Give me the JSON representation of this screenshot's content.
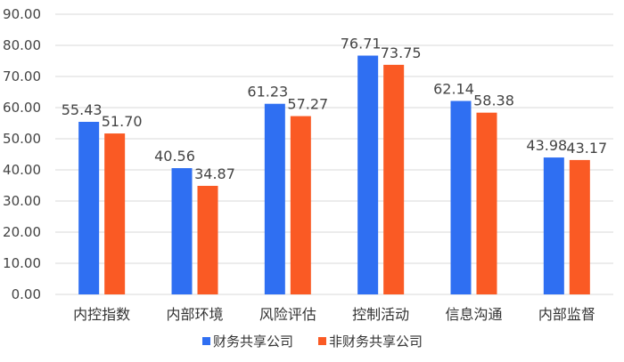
{
  "chart_data": {
    "type": "bar",
    "categories": [
      "内控指数",
      "内部环境",
      "风险评估",
      "控制活动",
      "信息沟通",
      "内部监督"
    ],
    "series": [
      {
        "name": "财务共享公司",
        "color": "#2f6ff2",
        "values": [
          55.43,
          40.56,
          61.23,
          76.71,
          62.14,
          43.98
        ]
      },
      {
        "name": "非财务共享公司",
        "color": "#fa5a24",
        "values": [
          51.7,
          34.87,
          57.27,
          73.75,
          58.38,
          43.17
        ]
      }
    ],
    "value_labels": [
      [
        "55.43",
        "40.56",
        "61.23",
        "76.71",
        "62.14",
        "43.98"
      ],
      [
        "51.70",
        "34.87",
        "57.27",
        "73.75",
        "58.38",
        "43.17"
      ]
    ],
    "yticks": [
      "0.00",
      "10.00",
      "20.00",
      "30.00",
      "40.00",
      "50.00",
      "60.00",
      "70.00",
      "80.00",
      "90.00"
    ],
    "ylim": [
      0,
      90
    ],
    "title": "",
    "xlabel": "",
    "ylabel": "",
    "grid": true,
    "legend_position": "bottom-center"
  }
}
